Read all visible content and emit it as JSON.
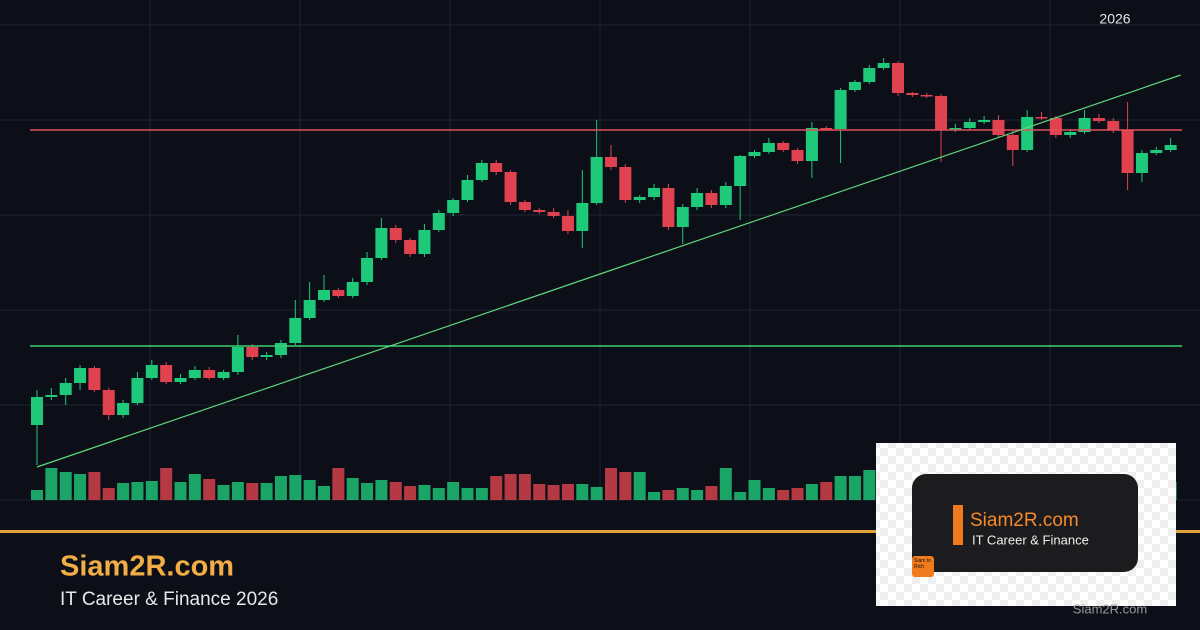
{
  "header": {
    "year": "2026"
  },
  "brand": {
    "name": "Siam2R.com",
    "tagline": "IT Career & Finance 2026",
    "watermark": "Siam2R.com"
  },
  "logo_card": {
    "name": "Siam2R.com",
    "tagline": "IT Career & Finance",
    "badge": "Siam to Rich"
  },
  "chart_data": {
    "type": "candlestick",
    "ylim": [
      0,
      500
    ],
    "grid_values": [
      475,
      380,
      285,
      190,
      95,
      0
    ],
    "up_color": "#1ec97a",
    "down_color": "#e0434f",
    "volume_lim": [
      0,
      500
    ],
    "open": [
      75,
      103,
      105,
      117,
      132,
      110,
      85,
      97,
      122,
      135,
      118,
      122,
      130,
      122,
      128,
      153,
      143,
      145,
      157,
      182,
      200,
      210,
      204,
      218,
      242,
      272,
      260,
      246,
      270,
      287,
      300,
      320,
      337,
      328,
      298,
      290,
      288,
      284,
      269,
      297,
      343,
      333,
      300,
      303,
      312,
      273,
      293,
      307,
      295,
      314,
      344,
      348,
      357,
      350,
      339,
      372,
      371,
      410,
      418,
      432,
      437,
      407,
      405,
      404,
      370,
      372,
      378,
      380,
      365,
      350,
      383,
      382,
      365,
      368,
      382,
      379,
      370,
      327,
      347,
      350
    ],
    "high": [
      110,
      112,
      122,
      135,
      134,
      112,
      100,
      128,
      140,
      138,
      126,
      134,
      133,
      130,
      165,
      156,
      148,
      160,
      200,
      218,
      225,
      212,
      222,
      248,
      282,
      275,
      262,
      276,
      290,
      302,
      325,
      340,
      340,
      330,
      300,
      292,
      292,
      290,
      330,
      380,
      355,
      336,
      305,
      316,
      316,
      296,
      312,
      310,
      318,
      345,
      350,
      362,
      359,
      352,
      378,
      374,
      412,
      420,
      435,
      442,
      439,
      408,
      407,
      406,
      376,
      382,
      384,
      385,
      369,
      390,
      388,
      384,
      371,
      390,
      386,
      382,
      398,
      350,
      353,
      362
    ],
    "low": [
      35,
      100,
      95,
      110,
      108,
      80,
      82,
      95,
      120,
      116,
      116,
      120,
      120,
      120,
      125,
      140,
      140,
      142,
      155,
      180,
      198,
      202,
      202,
      215,
      240,
      257,
      243,
      243,
      268,
      284,
      298,
      318,
      325,
      295,
      288,
      286,
      282,
      266,
      252,
      295,
      330,
      297,
      297,
      300,
      270,
      256,
      290,
      292,
      292,
      280,
      342,
      346,
      348,
      336,
      322,
      369,
      337,
      408,
      416,
      430,
      404,
      403,
      402,
      338,
      368,
      370,
      376,
      362,
      334,
      348,
      380,
      362,
      362,
      366,
      377,
      367,
      310,
      318,
      345,
      348
    ],
    "close": [
      103,
      105,
      117,
      132,
      110,
      85,
      97,
      122,
      135,
      118,
      122,
      130,
      122,
      128,
      153,
      143,
      145,
      157,
      182,
      200,
      210,
      204,
      218,
      242,
      272,
      260,
      246,
      270,
      287,
      300,
      320,
      337,
      328,
      298,
      290,
      288,
      284,
      269,
      297,
      343,
      333,
      300,
      303,
      312,
      273,
      293,
      307,
      295,
      314,
      344,
      348,
      357,
      350,
      339,
      372,
      371,
      410,
      418,
      432,
      437,
      407,
      405,
      404,
      370,
      372,
      378,
      380,
      365,
      350,
      383,
      382,
      365,
      368,
      382,
      379,
      370,
      327,
      347,
      350,
      355
    ],
    "volume": [
      10,
      32,
      28,
      26,
      28,
      12,
      17,
      18,
      19,
      32,
      18,
      26,
      21,
      15,
      18,
      17,
      17,
      24,
      25,
      20,
      14,
      32,
      22,
      17,
      20,
      18,
      14,
      15,
      12,
      18,
      12,
      12,
      24,
      26,
      26,
      16,
      15,
      16,
      16,
      13,
      32,
      28,
      28,
      8,
      10,
      12,
      10,
      14,
      32,
      8,
      20,
      12,
      10,
      12,
      16,
      18,
      24,
      24,
      30,
      28,
      26,
      12,
      17,
      12,
      10,
      24,
      16,
      16,
      16,
      26,
      24,
      30,
      24,
      32,
      30,
      30,
      26,
      24,
      28,
      18
    ],
    "hlines": [
      {
        "value": 370,
        "color": "#e0505a"
      },
      {
        "value": 154,
        "color": "#3fcf6f"
      }
    ],
    "trendline": {
      "x": [
        0,
        79.7
      ],
      "values": [
        33,
        425
      ],
      "color": "#5fd67a"
    }
  }
}
